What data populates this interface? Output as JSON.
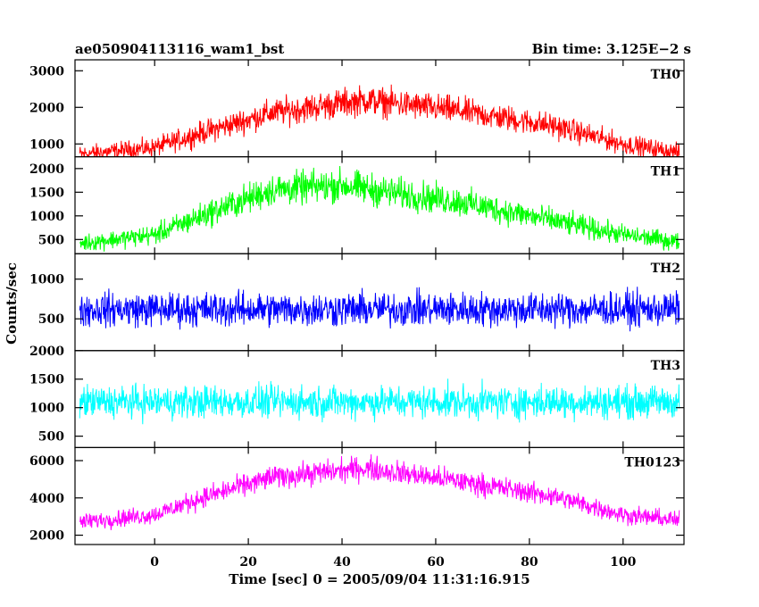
{
  "header": {
    "left_title": "ae050904113116_wam1_bst",
    "right_title": "Bin time: 3.125E−2 s"
  },
  "chart_data": {
    "type": "line",
    "xlabel": "Time [sec] 0 = 2005/09/04 11:31:16.915",
    "ylabel": "Counts/sec",
    "xlim": [
      -17,
      113
    ],
    "x_ticks": [
      0,
      20,
      40,
      60,
      80,
      100
    ],
    "x_tick_labels": [
      "0",
      "20",
      "40",
      "60",
      "80",
      "100"
    ],
    "x_range_data": [
      -16,
      112
    ],
    "bin_time_s": 0.03125,
    "panels": [
      {
        "name": "TH0",
        "color": "#ff0000",
        "ylim": [
          650,
          3300
        ],
        "y_ticks": [
          1000,
          2000,
          3000
        ],
        "y_tick_labels": [
          "1000",
          "2000",
          "3000"
        ],
        "profile": [
          [
            -16,
            720
          ],
          [
            0,
            900
          ],
          [
            10,
            1300
          ],
          [
            25,
            1850
          ],
          [
            45,
            2200
          ],
          [
            65,
            1900
          ],
          [
            85,
            1500
          ],
          [
            100,
            1000
          ],
          [
            112,
            760
          ]
        ]
      },
      {
        "name": "TH1",
        "color": "#00ff00",
        "ylim": [
          200,
          2250
        ],
        "y_ticks": [
          500,
          1000,
          1500,
          2000
        ],
        "y_tick_labels": [
          "500",
          "1000",
          "1500",
          "2000"
        ],
        "profile": [
          [
            -16,
            420
          ],
          [
            0,
            600
          ],
          [
            10,
            1000
          ],
          [
            25,
            1550
          ],
          [
            40,
            1650
          ],
          [
            50,
            1500
          ],
          [
            65,
            1300
          ],
          [
            85,
            900
          ],
          [
            100,
            600
          ],
          [
            112,
            450
          ]
        ]
      },
      {
        "name": "TH2",
        "color": "#0000ff",
        "ylim": [
          100,
          1320
        ],
        "y_ticks": [
          500,
          1000
        ],
        "y_tick_labels": [
          "500",
          "1000"
        ],
        "profile": [
          [
            -16,
            620
          ],
          [
            112,
            620
          ]
        ]
      },
      {
        "name": "TH3",
        "color": "#00ffff",
        "ylim": [
          300,
          2000
        ],
        "y_ticks": [
          500,
          1000,
          1500,
          2000
        ],
        "y_tick_labels": [
          "500",
          "1000",
          "1500",
          "2000"
        ],
        "profile": [
          [
            -16,
            1100
          ],
          [
            112,
            1100
          ]
        ]
      },
      {
        "name": "TH0123",
        "color": "#ff00ff",
        "ylim": [
          1500,
          6700
        ],
        "y_ticks": [
          2000,
          4000,
          6000
        ],
        "y_tick_labels": [
          "2000",
          "4000",
          "6000"
        ],
        "profile": [
          [
            -16,
            2700
          ],
          [
            0,
            3100
          ],
          [
            10,
            4000
          ],
          [
            25,
            5100
          ],
          [
            45,
            5600
          ],
          [
            65,
            4900
          ],
          [
            85,
            4100
          ],
          [
            100,
            3100
          ],
          [
            112,
            2800
          ]
        ]
      }
    ]
  }
}
